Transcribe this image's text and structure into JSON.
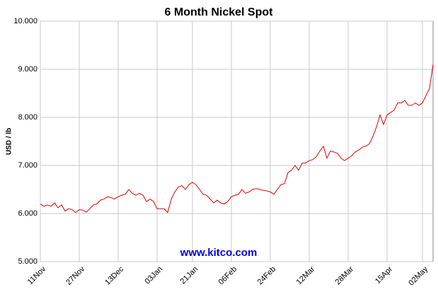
{
  "chart_data": {
    "type": "line",
    "title": "6 Month Nickel Spot",
    "y_label": "USD / lb",
    "watermark": "www.kitco.com",
    "grid": true,
    "categories": [
      "11Nov",
      null,
      null,
      null,
      null,
      null,
      null,
      null,
      null,
      null,
      null,
      "27Nov",
      null,
      null,
      null,
      null,
      null,
      null,
      null,
      null,
      null,
      null,
      "13Dec",
      null,
      null,
      null,
      null,
      null,
      null,
      null,
      null,
      null,
      null,
      "03Jan",
      null,
      null,
      null,
      null,
      null,
      null,
      null,
      null,
      null,
      "21Jan",
      null,
      null,
      null,
      null,
      null,
      null,
      null,
      null,
      null,
      null,
      "06Feb",
      null,
      null,
      null,
      null,
      null,
      null,
      null,
      null,
      null,
      null,
      "24Feb",
      null,
      null,
      null,
      null,
      null,
      null,
      null,
      null,
      null,
      null,
      "12Mar",
      null,
      null,
      null,
      null,
      null,
      null,
      null,
      null,
      null,
      null,
      "28Mar",
      null,
      null,
      null,
      null,
      null,
      null,
      null,
      null,
      null,
      null,
      "15Apr",
      null,
      null,
      null,
      null,
      null,
      null,
      null,
      null,
      null,
      "02May",
      null,
      null,
      null
    ],
    "series": [
      {
        "color": "#e00000",
        "values": [
          6.2,
          6.15,
          6.18,
          6.15,
          6.22,
          6.12,
          6.18,
          6.05,
          6.1,
          6.08,
          6.02,
          6.08,
          6.07,
          6.03,
          6.1,
          6.18,
          6.2,
          6.28,
          6.3,
          6.35,
          6.33,
          6.3,
          6.35,
          6.38,
          6.4,
          6.5,
          6.42,
          6.38,
          6.42,
          6.38,
          6.25,
          6.3,
          6.25,
          6.1,
          6.1,
          6.1,
          6.02,
          6.3,
          6.45,
          6.55,
          6.58,
          6.5,
          6.6,
          6.65,
          6.6,
          6.5,
          6.4,
          6.38,
          6.3,
          6.22,
          6.28,
          6.22,
          6.2,
          6.25,
          6.35,
          6.38,
          6.4,
          6.5,
          6.42,
          6.45,
          6.5,
          6.52,
          6.5,
          6.48,
          6.47,
          6.45,
          6.4,
          6.5,
          6.6,
          6.62,
          6.85,
          6.9,
          7.0,
          6.9,
          7.05,
          7.05,
          7.1,
          7.12,
          7.18,
          7.3,
          7.4,
          7.15,
          7.3,
          7.28,
          7.25,
          7.15,
          7.1,
          7.15,
          7.2,
          7.28,
          7.32,
          7.38,
          7.4,
          7.45,
          7.6,
          7.8,
          8.05,
          7.85,
          8.05,
          8.1,
          8.15,
          8.3,
          8.3,
          8.35,
          8.25,
          8.25,
          8.3,
          8.25,
          8.3,
          8.45,
          8.6,
          9.1
        ]
      }
    ],
    "ylim": [
      5,
      10
    ],
    "yticks": [
      {
        "value": 5,
        "label": "5.000"
      },
      {
        "value": 6,
        "label": "6.000"
      },
      {
        "value": 7,
        "label": "7.000"
      },
      {
        "value": 8,
        "label": "8.000"
      },
      {
        "value": 9,
        "label": "9.000"
      },
      {
        "value": 10,
        "label": "10.000"
      }
    ]
  }
}
